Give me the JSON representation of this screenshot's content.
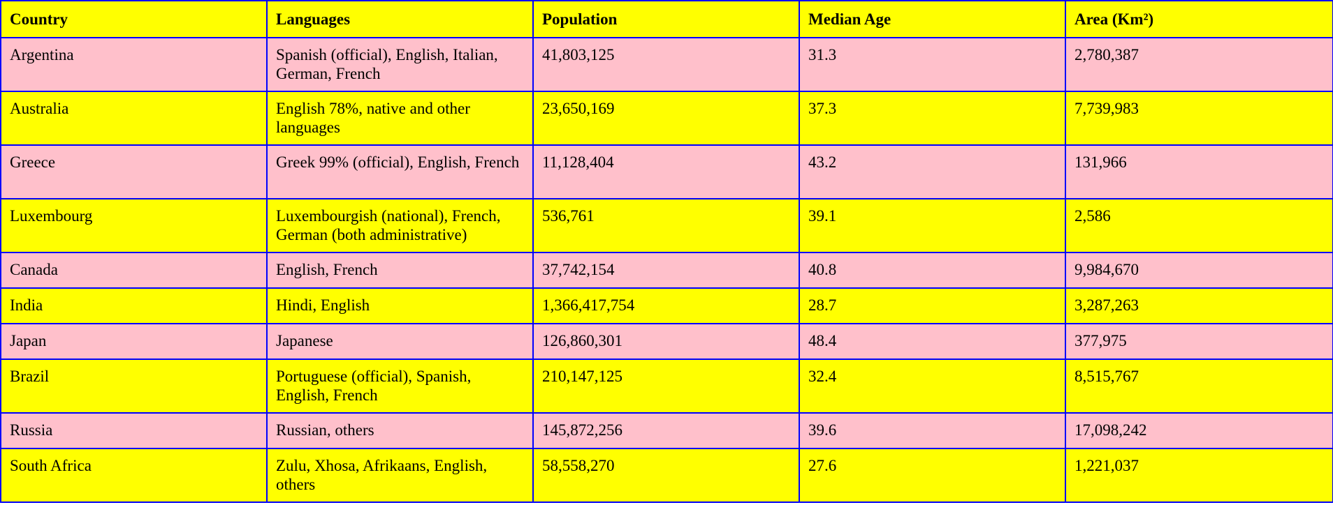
{
  "colors": {
    "header_bg": "#ffff00",
    "row_pink": "#ffc0cb",
    "row_yellow": "#ffff00",
    "border": "#0000ff"
  },
  "table": {
    "headers": [
      "Country",
      "Languages",
      "Population",
      "Median Age",
      "Area (Km²)"
    ],
    "rows": [
      [
        "Argentina",
        "Spanish (official), English, Italian, German, French",
        "41,803,125",
        "31.3",
        "2,780,387"
      ],
      [
        "Australia",
        "English 78%, native and other languages",
        "23,650,169",
        "37.3",
        "7,739,983"
      ],
      [
        "Greece",
        "Greek 99% (official), English, French",
        "11,128,404",
        "43.2",
        "131,966"
      ],
      [
        "Luxembourg",
        "Luxembourgish (national), French, German (both administrative)",
        "536,761",
        "39.1",
        "2,586"
      ],
      [
        "Canada",
        "English, French",
        "37,742,154",
        "40.8",
        "9,984,670"
      ],
      [
        "India",
        "Hindi, English",
        "1,366,417,754",
        "28.7",
        "3,287,263"
      ],
      [
        "Japan",
        "Japanese",
        "126,860,301",
        "48.4",
        "377,975"
      ],
      [
        "Brazil",
        "Portuguese (official), Spanish, English, French",
        "210,147,125",
        "32.4",
        "8,515,767"
      ],
      [
        "Russia",
        "Russian, others",
        "145,872,256",
        "39.6",
        "17,098,242"
      ],
      [
        "South Africa",
        "Zulu, Xhosa, Afrikaans, English, others",
        "58,558,270",
        "27.6",
        "1,221,037"
      ]
    ]
  }
}
